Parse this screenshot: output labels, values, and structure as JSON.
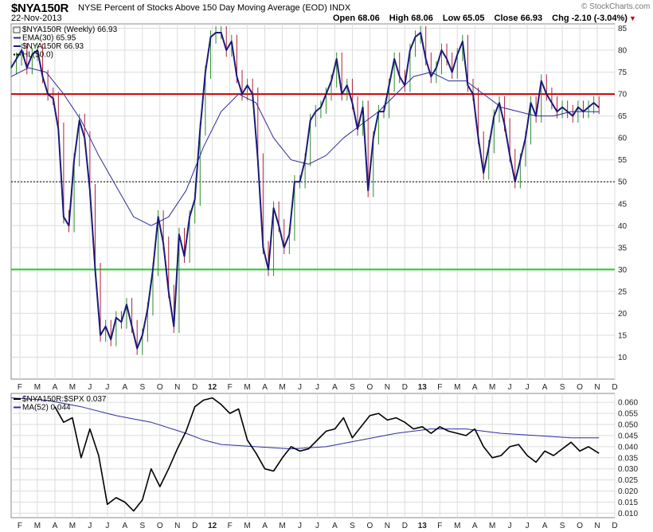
{
  "header": {
    "symbol": "$NYA150R",
    "description": "NYSE Percent of Stocks Above 150 Day Moving Average (EOD)  INDX",
    "date": "22-Nov-2013",
    "logo": "© StockCharts.com",
    "quote": {
      "open_label": "Open",
      "open": "68.06",
      "high_label": "High",
      "high": "68.06",
      "low_label": "Low",
      "low": "65.05",
      "close_label": "Close",
      "close": "66.93",
      "chg_label": "Chg",
      "chg": "-2.10 (-3.04%)"
    }
  },
  "colors": {
    "price": "#1a1a7a",
    "ema": "#2b2b9e",
    "up_bar": "#2e8b2e",
    "down_bar": "#b0203a",
    "red_line": "#cc0000",
    "green_line": "#22cc22",
    "ratio": "#000000",
    "ma52": "#2b2b9e",
    "grid": "#dcdcdc"
  },
  "chart_data": [
    {
      "type": "line",
      "title": "$NYA150R NYSE Percent of Stocks Above 150 Day Moving Average (EOD)",
      "ylim": [
        5,
        86
      ],
      "y_ticks": [
        10,
        15,
        20,
        25,
        30,
        35,
        40,
        45,
        50,
        55,
        60,
        65,
        70,
        75,
        80,
        85
      ],
      "x_tick_labels": [
        "F",
        "M",
        "A",
        "M",
        "J",
        "J",
        "A",
        "S",
        "O",
        "N",
        "D",
        "12",
        "F",
        "M",
        "A",
        "M",
        "J",
        "J",
        "A",
        "S",
        "O",
        "N",
        "D",
        "13",
        "F",
        "M",
        "A",
        "M",
        "J",
        "J",
        "A",
        "S",
        "O",
        "N",
        "D"
      ],
      "grid": true,
      "horizontal_lines": [
        {
          "value": 70,
          "style": "solid",
          "color": "red"
        },
        {
          "value": 50,
          "style": "dotted",
          "color": "black"
        },
        {
          "value": 30,
          "style": "solid",
          "color": "green"
        }
      ],
      "legend": [
        {
          "name": "$NYA150R (Weekly) 66.93",
          "marker": "bars"
        },
        {
          "name": "EMA(30) 65.95",
          "marker": "line"
        },
        {
          "name": "$NYA150R 66.93",
          "marker": "line"
        },
        {
          "name": "HL(50.0)",
          "marker": "dotted"
        }
      ],
      "series": [
        {
          "name": "$NYA150R",
          "x": [
            0,
            0.3,
            0.6,
            0.9,
            1.2,
            1.5,
            1.8,
            2.1,
            2.4,
            2.7,
            3,
            3.3,
            3.6,
            3.9,
            4.2,
            4.5,
            4.8,
            5.1,
            5.4,
            5.7,
            6,
            6.3,
            6.6,
            6.9,
            7.2,
            7.5,
            7.8,
            8.1,
            8.4,
            8.7,
            9,
            9.3,
            9.6,
            9.9,
            10.2,
            10.5,
            10.8,
            11.1,
            11.4,
            11.7,
            12,
            12.3,
            12.6,
            12.9,
            13.2,
            13.5,
            13.8,
            14.1,
            14.4,
            14.7,
            15,
            15.3,
            15.6,
            15.9,
            16.2,
            16.5,
            16.8,
            17.1,
            17.4,
            17.7,
            18,
            18.3,
            18.6,
            18.9,
            19.2,
            19.5,
            19.8,
            20.1,
            20.4,
            20.7,
            21,
            21.3,
            21.6,
            21.9,
            22.2,
            22.5,
            22.8,
            23.1,
            23.4,
            23.7,
            24,
            24.3,
            24.6,
            24.9,
            25.2,
            25.5,
            25.8,
            26.1,
            26.4,
            26.7,
            27,
            27.3,
            27.6,
            27.9,
            28.2,
            28.5,
            28.8,
            29.1,
            29.4,
            29.7,
            30,
            30.3,
            30.6,
            30.9,
            31.2,
            31.5,
            31.8,
            32.1,
            32.4,
            32.7,
            33,
            33.3,
            33.6
          ],
          "values": [
            76,
            78,
            80,
            76,
            79,
            80,
            74,
            70,
            69,
            62,
            42,
            40,
            55,
            64,
            60,
            48,
            30,
            15,
            17,
            14,
            19,
            18,
            22,
            17,
            12,
            15,
            21,
            30,
            42,
            36,
            25,
            17,
            38,
            33,
            42,
            46,
            62,
            75,
            83,
            84,
            84,
            80,
            82,
            74,
            70,
            72,
            70,
            55,
            35,
            30,
            44,
            40,
            35,
            38,
            50,
            50,
            55,
            64,
            66,
            67,
            70,
            73,
            78,
            70,
            72,
            68,
            62,
            67,
            48,
            60,
            66,
            66,
            72,
            78,
            74,
            72,
            80,
            83,
            84,
            78,
            74,
            76,
            80,
            78,
            75,
            79,
            82,
            72,
            70,
            60,
            52,
            58,
            65,
            68,
            63,
            56,
            50,
            55,
            60,
            68,
            65,
            73,
            70,
            68,
            66,
            67,
            66,
            65,
            67,
            66,
            67,
            68,
            66.93
          ]
        },
        {
          "name": "EMA(30)",
          "x": [
            0,
            1,
            2,
            3,
            4,
            5,
            6,
            7,
            8,
            9,
            10,
            11,
            12,
            13,
            14,
            15,
            16,
            17,
            18,
            19,
            20,
            21,
            22,
            23,
            24,
            25,
            26,
            27,
            28,
            29,
            30,
            31,
            32,
            33,
            33.6
          ],
          "values": [
            74,
            76,
            75,
            70,
            64,
            56,
            49,
            42,
            40,
            42,
            48,
            58,
            66,
            70,
            68,
            60,
            55,
            54,
            56,
            60,
            63,
            66,
            70,
            74,
            75,
            73,
            73,
            70,
            67,
            66,
            65,
            65,
            66,
            66,
            65.95
          ]
        }
      ]
    },
    {
      "type": "line",
      "title": "$NYA150R:$SPX 0.037",
      "ylim": [
        0.008,
        0.064
      ],
      "y_ticks": [
        0.01,
        0.015,
        0.02,
        0.025,
        0.03,
        0.035,
        0.04,
        0.045,
        0.05,
        0.055,
        0.06
      ],
      "y_tick_labels": [
        "0.010",
        "0.015",
        "0.020",
        "0.025",
        "0.030",
        "0.035",
        "0.040",
        "0.045",
        "0.050",
        "0.055",
        "0.060"
      ],
      "x_tick_labels": [
        "F",
        "M",
        "A",
        "M",
        "J",
        "J",
        "A",
        "S",
        "O",
        "N",
        "D",
        "12",
        "F",
        "M",
        "A",
        "M",
        "J",
        "J",
        "A",
        "S",
        "O",
        "N",
        "D",
        "13",
        "F",
        "M",
        "A",
        "M",
        "J",
        "J",
        "A",
        "S",
        "O",
        "N",
        "D"
      ],
      "grid": true,
      "legend": [
        {
          "name": "$NYA150R:$SPX 0.037",
          "marker": "line"
        },
        {
          "name": "MA(52) 0.044",
          "marker": "line"
        }
      ],
      "series": [
        {
          "name": "$NYA150R:$SPX",
          "x": [
            2.5,
            3,
            3.5,
            4,
            4.5,
            5,
            5.5,
            6,
            6.5,
            7,
            7.5,
            8,
            8.5,
            9,
            9.5,
            10,
            10.5,
            11,
            11.5,
            12,
            12.5,
            13,
            13.5,
            14,
            14.5,
            15,
            15.5,
            16,
            16.5,
            17,
            17.5,
            18,
            18.5,
            19,
            19.5,
            20,
            20.5,
            21,
            21.5,
            22,
            22.5,
            23,
            23.5,
            24,
            24.5,
            25,
            25.5,
            26,
            26.5,
            27,
            27.5,
            28,
            28.5,
            29,
            29.5,
            30,
            30.5,
            31,
            31.5,
            32,
            32.5,
            33,
            33.6
          ],
          "values": [
            0.058,
            0.051,
            0.053,
            0.035,
            0.048,
            0.036,
            0.014,
            0.017,
            0.015,
            0.011,
            0.016,
            0.03,
            0.022,
            0.03,
            0.039,
            0.047,
            0.058,
            0.061,
            0.062,
            0.059,
            0.055,
            0.057,
            0.043,
            0.037,
            0.03,
            0.029,
            0.035,
            0.04,
            0.038,
            0.039,
            0.043,
            0.047,
            0.048,
            0.053,
            0.044,
            0.049,
            0.054,
            0.055,
            0.052,
            0.053,
            0.051,
            0.048,
            0.049,
            0.046,
            0.049,
            0.047,
            0.046,
            0.045,
            0.048,
            0.04,
            0.035,
            0.036,
            0.04,
            0.041,
            0.036,
            0.033,
            0.038,
            0.036,
            0.039,
            0.042,
            0.038,
            0.04,
            0.037
          ]
        },
        {
          "name": "MA(52)",
          "x": [
            0,
            2,
            4,
            6,
            8,
            10,
            11,
            12,
            14,
            16,
            18,
            20,
            22,
            24,
            26,
            28,
            30,
            32,
            33.6
          ],
          "values": [
            0.062,
            0.061,
            0.058,
            0.054,
            0.051,
            0.046,
            0.043,
            0.041,
            0.04,
            0.039,
            0.04,
            0.043,
            0.046,
            0.048,
            0.048,
            0.046,
            0.045,
            0.044,
            0.044
          ]
        }
      ]
    }
  ]
}
